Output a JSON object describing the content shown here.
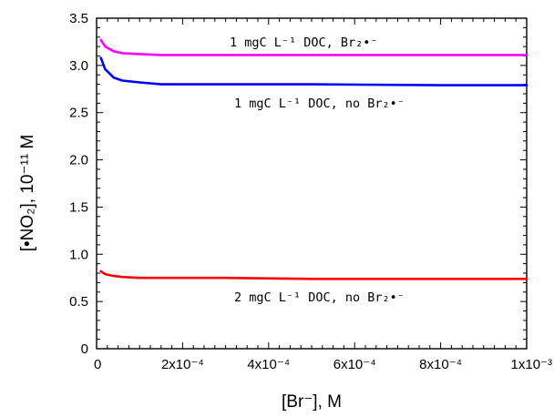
{
  "chart_data": {
    "type": "line",
    "xlabel": "[Br⁻], M",
    "ylabel": "[•NO₂], 10⁻¹¹ M",
    "xlim": [
      0,
      0.001
    ],
    "ylim": [
      0,
      3.5
    ],
    "x_ticks": [
      0,
      0.0002,
      0.0004,
      0.0006,
      0.0008,
      0.001
    ],
    "x_tick_labels": [
      "0",
      "2x10⁻⁴",
      "4x10⁻⁴",
      "6x10⁻⁴",
      "8x10⁻⁴",
      "1x10⁻³"
    ],
    "y_ticks": [
      0,
      0.5,
      1.0,
      1.5,
      2.0,
      2.5,
      3.0,
      3.5
    ],
    "y_tick_labels": [
      "0",
      "0.5",
      "1.0",
      "1.5",
      "2.0",
      "2.5",
      "3.0",
      "3.5"
    ],
    "grid": false,
    "legend": "none",
    "series": [
      {
        "color": "#ff00ff",
        "x": [
          1e-05,
          2e-05,
          4e-05,
          6e-05,
          0.0001,
          0.00015,
          0.0002,
          0.0003,
          0.0005,
          0.0008,
          0.001
        ],
        "y": [
          3.27,
          3.2,
          3.15,
          3.13,
          3.12,
          3.11,
          3.11,
          3.11,
          3.11,
          3.11,
          3.11
        ]
      },
      {
        "color": "#0000ff",
        "x": [
          1e-05,
          2e-05,
          4e-05,
          6e-05,
          0.0001,
          0.00015,
          0.0002,
          0.0003,
          0.0005,
          0.0008,
          0.001
        ],
        "y": [
          3.08,
          2.96,
          2.87,
          2.84,
          2.82,
          2.8,
          2.8,
          2.8,
          2.8,
          2.79,
          2.79
        ]
      },
      {
        "color": "#ff0000",
        "x": [
          1e-05,
          2e-05,
          4e-05,
          6e-05,
          0.0001,
          0.00015,
          0.0002,
          0.0003,
          0.0005,
          0.0008,
          0.001
        ],
        "y": [
          0.82,
          0.79,
          0.77,
          0.76,
          0.75,
          0.75,
          0.75,
          0.75,
          0.74,
          0.74,
          0.74
        ]
      }
    ],
    "annotations": [
      "1 mgC L⁻¹ DOC, Br₂•⁻",
      "1 mgC L⁻¹ DOC, no Br₂•⁻",
      "2 mgC L⁻¹ DOC, no Br₂•⁻"
    ]
  }
}
